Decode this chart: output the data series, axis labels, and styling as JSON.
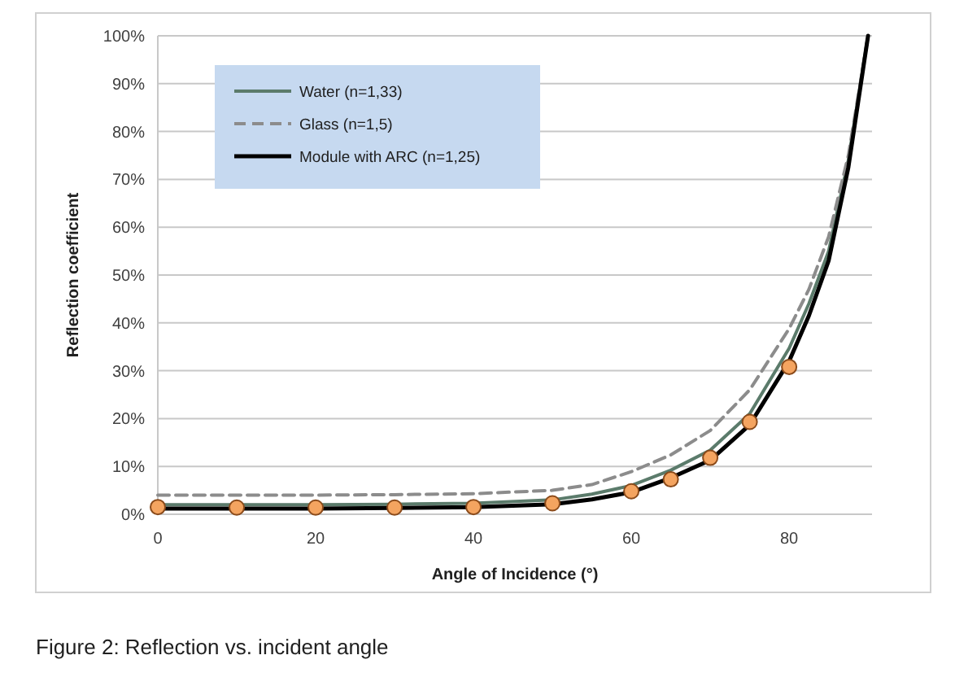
{
  "chart_data": {
    "type": "line",
    "xlabel": "Angle of Incidence (°)",
    "ylabel": "Reflection coefficient",
    "annotations": [
      "Figure 2: Reflection vs. incident angle"
    ],
    "xlim": [
      0,
      90.5
    ],
    "xticks": [
      0,
      20,
      40,
      60,
      80
    ],
    "ylim": [
      0,
      100
    ],
    "yticks": [
      {
        "value": 0,
        "label": "0%"
      },
      {
        "value": 10,
        "label": "10%"
      },
      {
        "value": 20,
        "label": "20%"
      },
      {
        "value": 30,
        "label": "30%"
      },
      {
        "value": 40,
        "label": "40%"
      },
      {
        "value": 50,
        "label": "50%"
      },
      {
        "value": 60,
        "label": "60%"
      },
      {
        "value": 70,
        "label": "70%"
      },
      {
        "value": 80,
        "label": "80%"
      },
      {
        "value": 90,
        "label": "90%"
      },
      {
        "value": 100,
        "label": "100%"
      }
    ],
    "grid": "y",
    "legend": "top left",
    "series": [
      {
        "name": "Water (n=1,33)",
        "color": "#5b7b6b",
        "line_style": "solid",
        "marker": "none",
        "x": [
          0,
          10,
          20,
          30,
          40,
          50,
          55,
          60,
          65,
          70,
          75,
          80,
          82.5,
          85,
          87.5,
          90
        ],
        "values": [
          2.0,
          2.0,
          2.0,
          2.1,
          2.3,
          3.0,
          4.2,
          6.0,
          9.2,
          13.4,
          21,
          34.7,
          44,
          55,
          74,
          100
        ]
      },
      {
        "name": "Glass (n=1,5)",
        "color": "#8c8c8c",
        "line_style": "dashed",
        "marker": "none",
        "x": [
          0,
          10,
          20,
          30,
          40,
          50,
          55,
          60,
          65,
          70,
          75,
          80,
          82.5,
          85,
          87.5,
          90
        ],
        "values": [
          4.0,
          4.0,
          4.0,
          4.1,
          4.3,
          5.0,
          6.2,
          8.9,
          12.4,
          17.5,
          26,
          38.8,
          47,
          58,
          75,
          100
        ]
      },
      {
        "name": "Module with ARC (n=1,25)",
        "color": "#000000",
        "line_style": "solid",
        "marker": "none",
        "x": [
          0,
          10,
          20,
          30,
          40,
          50,
          55,
          60,
          65,
          70,
          75,
          80,
          82.5,
          85,
          87.5,
          90
        ],
        "values": [
          1.2,
          1.2,
          1.2,
          1.3,
          1.5,
          2.1,
          3.1,
          4.6,
          7.6,
          11.3,
          18.7,
          32,
          41.5,
          53,
          72.5,
          100
        ]
      },
      {
        "type": "scatter",
        "color": "#f4a460",
        "marker": "circle",
        "x": [
          0,
          10,
          20,
          30,
          40,
          50,
          60,
          65,
          70,
          75,
          80
        ],
        "values": [
          1.5,
          1.4,
          1.4,
          1.4,
          1.5,
          2.3,
          4.8,
          7.3,
          11.8,
          19.3,
          30.8
        ]
      }
    ]
  }
}
